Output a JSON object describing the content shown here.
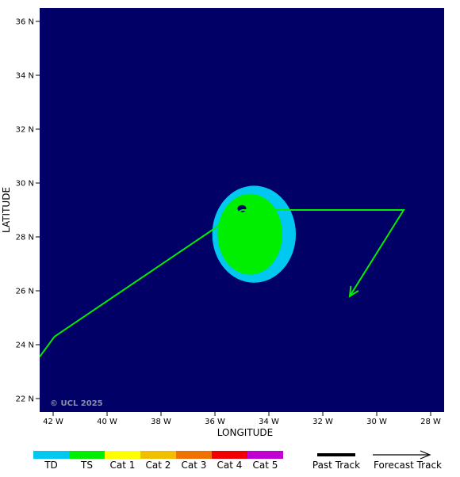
{
  "map": {
    "background_color": "#000066",
    "watermark": "© UCL 2025",
    "x_axis": {
      "title": "LONGITUDE",
      "range": [
        -42.5,
        -27.5
      ],
      "ticks": [
        {
          "value": -42,
          "label": "42 W"
        },
        {
          "value": -40,
          "label": "40 W"
        },
        {
          "value": -38,
          "label": "38 W"
        },
        {
          "value": -36,
          "label": "36 W"
        },
        {
          "value": -34,
          "label": "34 W"
        },
        {
          "value": -32,
          "label": "32 W"
        },
        {
          "value": -30,
          "label": "30 W"
        },
        {
          "value": -28,
          "label": "28 W"
        }
      ]
    },
    "y_axis": {
      "title": "LATITUDE",
      "range": [
        21.5,
        36.5
      ],
      "ticks": [
        {
          "value": 22,
          "label": "22 N"
        },
        {
          "value": 24,
          "label": "24 N"
        },
        {
          "value": 26,
          "label": "26 N"
        },
        {
          "value": 28,
          "label": "28 N"
        },
        {
          "value": 30,
          "label": "30 N"
        },
        {
          "value": 32,
          "label": "32 N"
        },
        {
          "value": 34,
          "label": "34 N"
        },
        {
          "value": 36,
          "label": "36 N"
        }
      ]
    },
    "wind_field": {
      "td_color": "#00c8f0",
      "ts_color": "#00ee00",
      "td_extent": {
        "lon": [
          -36.1,
          -33.0
        ],
        "lat": [
          26.3,
          29.9
        ]
      },
      "ts_extent": {
        "lon": [
          -35.9,
          -33.5
        ],
        "lat": [
          26.6,
          29.6
        ]
      },
      "center": {
        "lon": -35.0,
        "lat": 29.05
      }
    },
    "track": {
      "color": "#00ee00",
      "past": [
        {
          "lon": -42.5,
          "lat": 23.55
        },
        {
          "lon": -41.95,
          "lat": 24.3
        },
        {
          "lon": -35.0,
          "lat": 29.0
        }
      ],
      "forecast": [
        {
          "lon": -35.0,
          "lat": 29.0
        },
        {
          "lon": -29.0,
          "lat": 29.0
        },
        {
          "lon": -31.0,
          "lat": 25.8
        }
      ]
    }
  },
  "legend": {
    "categories": [
      {
        "label": "TD",
        "color": "#00c8f0"
      },
      {
        "label": "TS",
        "color": "#00ee00"
      },
      {
        "label": "Cat 1",
        "color": "#ffff00"
      },
      {
        "label": "Cat 2",
        "color": "#f0c000"
      },
      {
        "label": "Cat 3",
        "color": "#f07000"
      },
      {
        "label": "Cat 4",
        "color": "#f00000"
      },
      {
        "label": "Cat 5",
        "color": "#c000d0"
      }
    ],
    "past_track_label": "Past Track",
    "forecast_track_label": "Forecast Track"
  }
}
